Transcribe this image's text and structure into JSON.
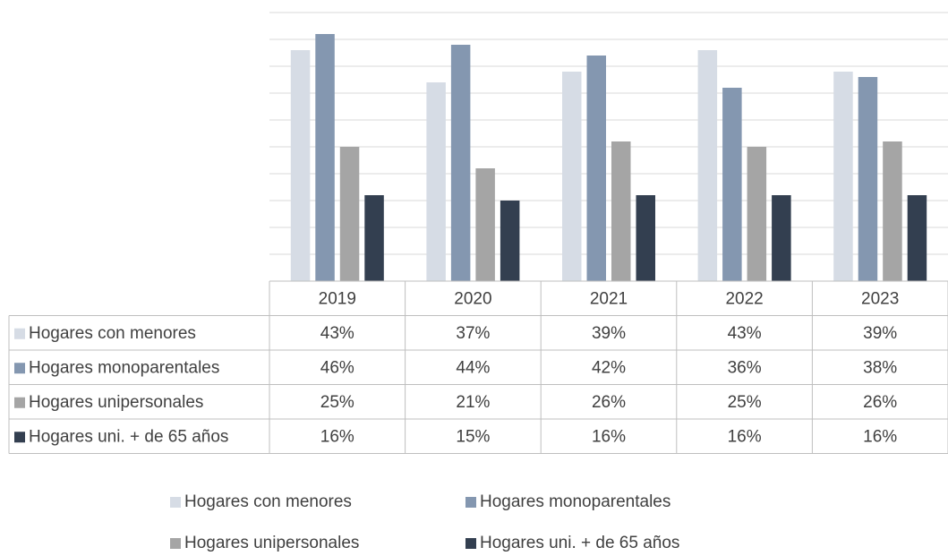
{
  "chart_data": {
    "type": "bar",
    "categories": [
      "2019",
      "2020",
      "2021",
      "2022",
      "2023"
    ],
    "series": [
      {
        "name": "Hogares con menores",
        "color": "#d6dce5",
        "values": [
          43,
          37,
          39,
          43,
          39
        ],
        "value_labels": [
          "43%",
          "37%",
          "39%",
          "43%",
          "39%"
        ]
      },
      {
        "name": "Hogares monoparentales",
        "color": "#8497b0",
        "values": [
          46,
          44,
          42,
          36,
          38
        ],
        "value_labels": [
          "46%",
          "44%",
          "42%",
          "36%",
          "38%"
        ]
      },
      {
        "name": "Hogares unipersonales",
        "color": "#a5a5a5",
        "values": [
          25,
          21,
          26,
          25,
          26
        ],
        "value_labels": [
          "25%",
          "21%",
          "26%",
          "25%",
          "26%"
        ]
      },
      {
        "name": "Hogares uni. + de 65 años",
        "color": "#333f50",
        "values": [
          16,
          15,
          16,
          16,
          16
        ],
        "value_labels": [
          "16%",
          "15%",
          "16%",
          "16%",
          "16%"
        ]
      }
    ],
    "ylim": [
      0,
      50
    ],
    "yticks": [
      0,
      5,
      10,
      15,
      20,
      25,
      30,
      35,
      40,
      45,
      50
    ],
    "grid": true
  }
}
